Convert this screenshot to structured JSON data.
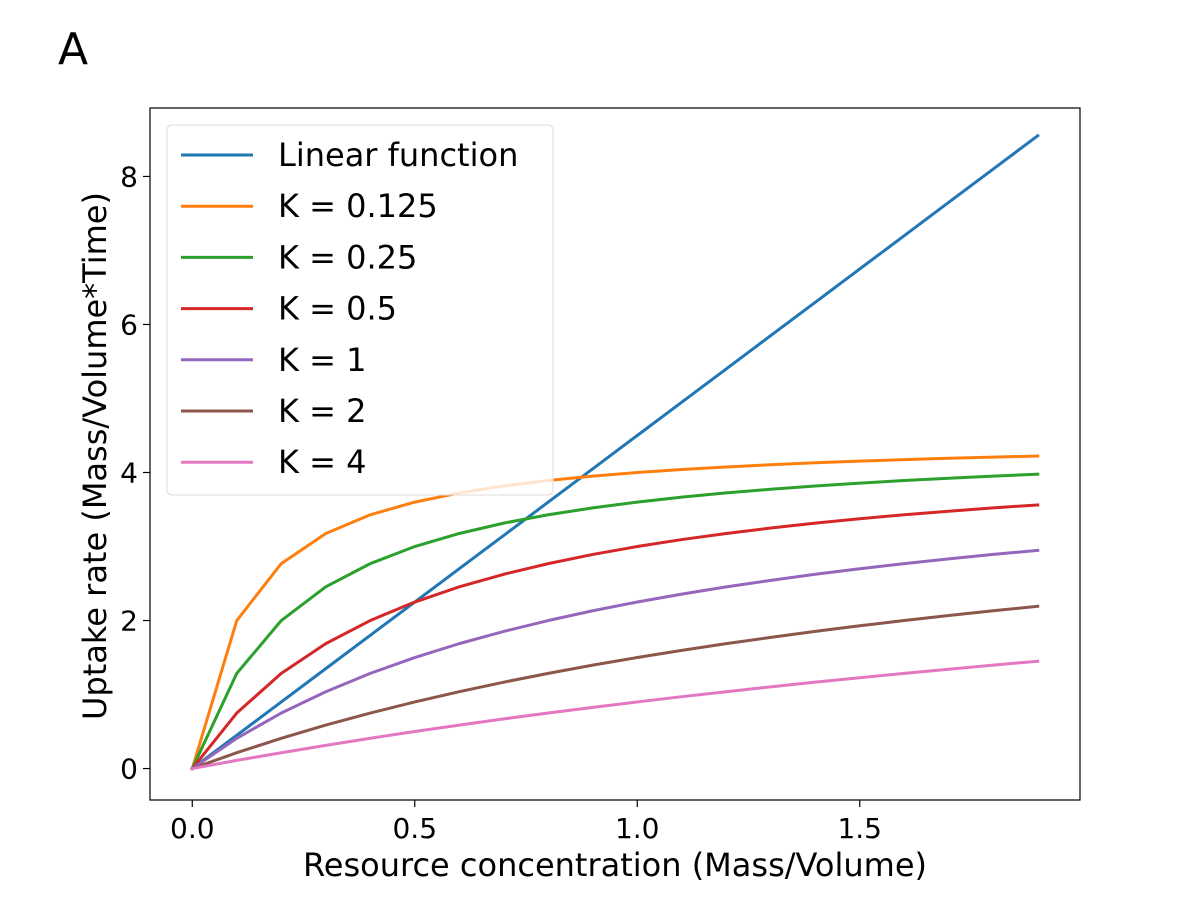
{
  "panel_label": "A",
  "chart_data": {
    "type": "line",
    "title": "",
    "xlabel": "Resource concentration (Mass/Volume)",
    "ylabel": "Uptake rate (Mass/Volume*Time)",
    "xlim": [
      -0.095,
      1.995
    ],
    "ylim": [
      -0.425,
      8.925
    ],
    "xticks": [
      0.0,
      0.5,
      1.0,
      1.5
    ],
    "xtick_labels": [
      "0.0",
      "0.5",
      "1.0",
      "1.5"
    ],
    "yticks": [
      0,
      2,
      4,
      6,
      8
    ],
    "ytick_labels": [
      "0",
      "2",
      "4",
      "6",
      "8"
    ],
    "grid": false,
    "legend_position": "top-left",
    "x": [
      0.0,
      0.1,
      0.2,
      0.3,
      0.4,
      0.5,
      0.6,
      0.7,
      0.8,
      0.9,
      1.0,
      1.1,
      1.2,
      1.3,
      1.4,
      1.5,
      1.6,
      1.7,
      1.8,
      1.9
    ],
    "series": [
      {
        "name": "Linear function",
        "color": "#1f77b4",
        "values": [
          0.0,
          0.45,
          0.9,
          1.35,
          1.8,
          2.25,
          2.7,
          3.15,
          3.6,
          4.05,
          4.5,
          4.95,
          5.4,
          5.85,
          6.3,
          6.75,
          7.2,
          7.65,
          8.1,
          8.55
        ]
      },
      {
        "name": "K = 0.125",
        "color": "#ff7f0e",
        "values": [
          0.0,
          2.0,
          2.769,
          3.176,
          3.429,
          3.6,
          3.724,
          3.818,
          3.892,
          3.951,
          4.0,
          4.041,
          4.075,
          4.105,
          4.131,
          4.154,
          4.174,
          4.192,
          4.208,
          4.222
        ]
      },
      {
        "name": "K = 0.25",
        "color": "#2ca02c",
        "values": [
          0.0,
          1.286,
          2.0,
          2.455,
          2.769,
          3.0,
          3.176,
          3.316,
          3.429,
          3.522,
          3.6,
          3.667,
          3.724,
          3.774,
          3.818,
          3.857,
          3.892,
          3.923,
          3.951,
          3.977
        ]
      },
      {
        "name": "K = 0.5",
        "color": "#d62728",
        "values": [
          0.0,
          0.75,
          1.286,
          1.688,
          2.0,
          2.25,
          2.455,
          2.625,
          2.769,
          2.893,
          3.0,
          3.094,
          3.176,
          3.25,
          3.316,
          3.375,
          3.429,
          3.477,
          3.522,
          3.562
        ]
      },
      {
        "name": "K = 1",
        "color": "#9467bd",
        "values": [
          0.0,
          0.409,
          0.75,
          1.038,
          1.286,
          1.5,
          1.688,
          1.853,
          2.0,
          2.132,
          2.25,
          2.357,
          2.455,
          2.543,
          2.625,
          2.7,
          2.769,
          2.833,
          2.893,
          2.948
        ]
      },
      {
        "name": "K = 2",
        "color": "#8c564b",
        "values": [
          0.0,
          0.214,
          0.409,
          0.587,
          0.75,
          0.9,
          1.038,
          1.167,
          1.286,
          1.397,
          1.5,
          1.597,
          1.688,
          1.772,
          1.853,
          1.929,
          2.0,
          2.068,
          2.132,
          2.192
        ]
      },
      {
        "name": "K = 4",
        "color": "#e377c2",
        "values": [
          0.0,
          0.11,
          0.214,
          0.313,
          0.409,
          0.5,
          0.587,
          0.671,
          0.75,
          0.826,
          0.9,
          0.971,
          1.038,
          1.104,
          1.167,
          1.227,
          1.286,
          1.342,
          1.397,
          1.45
        ]
      }
    ]
  }
}
